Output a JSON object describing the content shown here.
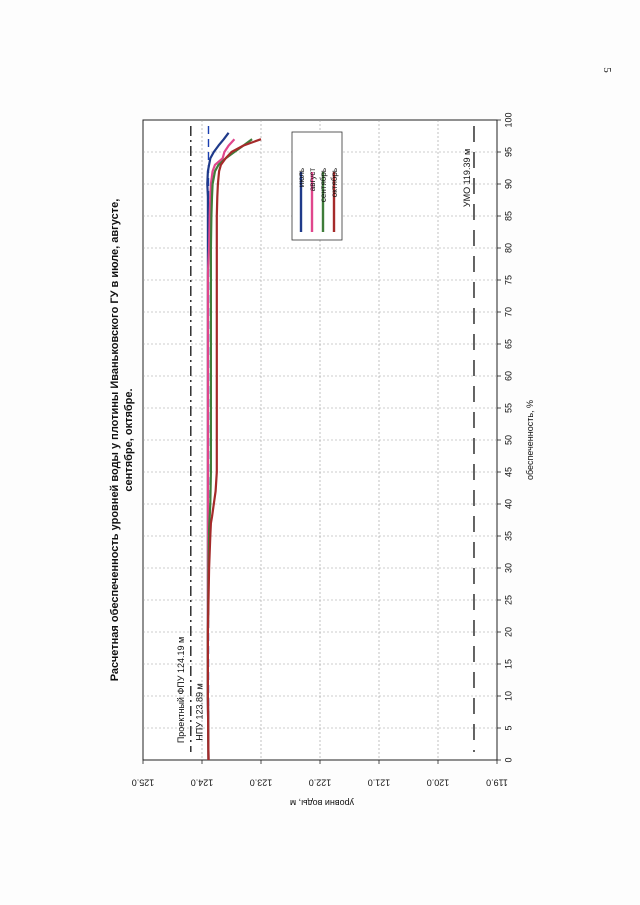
{
  "page_number": "5",
  "chart_data": {
    "type": "line",
    "title_line1": "Расчетная обеспеченность уровней воды у плотины Иваньковского ГУ в июле, августе,",
    "title_line2": "сентябре, октябре.",
    "xlabel": "обеспеченность, %",
    "ylabel": "уровни воды, м",
    "xlim": [
      0,
      100
    ],
    "ylim": [
      119.0,
      125.0
    ],
    "xticks": [
      "0",
      "5",
      "10",
      "15",
      "20",
      "25",
      "30",
      "35",
      "40",
      "45",
      "50",
      "55",
      "60",
      "65",
      "70",
      "75",
      "80",
      "85",
      "90",
      "95",
      "100"
    ],
    "yticks": [
      "119.0",
      "120.0",
      "121.0",
      "122.0",
      "123.0",
      "124.0",
      "125.0"
    ],
    "grid": true,
    "legend_position": "top-right",
    "colors": {
      "july": "#1f3a8a",
      "august": "#e0468c",
      "september": "#3f7d3a",
      "october": "#a52a2a"
    },
    "series": [
      {
        "name": "июль",
        "color": "#1f3a8a",
        "x": [
          0,
          10,
          20,
          30,
          40,
          50,
          60,
          70,
          80,
          85,
          88,
          90,
          92,
          94,
          95,
          96,
          97,
          98
        ],
        "y": [
          123.89,
          123.9,
          123.9,
          123.9,
          123.9,
          123.9,
          123.9,
          123.9,
          123.9,
          123.9,
          123.9,
          123.91,
          123.9,
          123.86,
          123.8,
          123.72,
          123.63,
          123.55
        ]
      },
      {
        "name": "август",
        "color": "#e0468c",
        "x": [
          0,
          10,
          20,
          30,
          40,
          50,
          60,
          70,
          76,
          78,
          80,
          85,
          88,
          90,
          92,
          93,
          94,
          95,
          96,
          97
        ],
        "y": [
          123.89,
          123.9,
          123.9,
          123.9,
          123.9,
          123.9,
          123.9,
          123.9,
          123.9,
          123.89,
          123.88,
          123.87,
          123.86,
          123.85,
          123.82,
          123.78,
          123.65,
          123.62,
          123.55,
          123.45
        ]
      },
      {
        "name": "сентябрь",
        "color": "#3f7d3a",
        "x": [
          0,
          10,
          20,
          30,
          36,
          40,
          45,
          50,
          60,
          70,
          80,
          85,
          88,
          90,
          92,
          93,
          94,
          95,
          96,
          97
        ],
        "y": [
          123.89,
          123.9,
          123.9,
          123.89,
          123.88,
          123.86,
          123.85,
          123.85,
          123.85,
          123.85,
          123.85,
          123.84,
          123.83,
          123.82,
          123.78,
          123.72,
          123.6,
          123.45,
          123.3,
          123.15
        ]
      },
      {
        "name": "октябрь",
        "color": "#a52a2a",
        "x": [
          0,
          10,
          20,
          30,
          35,
          37,
          38,
          40,
          42,
          45,
          50,
          60,
          70,
          80,
          85,
          88,
          90,
          92,
          93,
          94,
          95,
          96,
          97
        ],
        "y": [
          123.89,
          123.9,
          123.9,
          123.88,
          123.86,
          123.85,
          123.83,
          123.8,
          123.77,
          123.75,
          123.75,
          123.75,
          123.75,
          123.75,
          123.75,
          123.74,
          123.73,
          123.71,
          123.68,
          123.6,
          123.5,
          123.3,
          123.0
        ]
      }
    ],
    "reference_lines": [
      {
        "label": "Проектный ФПУ 124.19 м",
        "value": 124.19,
        "style": "dash-dot"
      },
      {
        "label": "НПУ 123.89 м",
        "value": 123.89,
        "style": "dash"
      },
      {
        "label": "УМО 119.39 м",
        "value": 119.39,
        "style": "long-dash"
      }
    ]
  }
}
